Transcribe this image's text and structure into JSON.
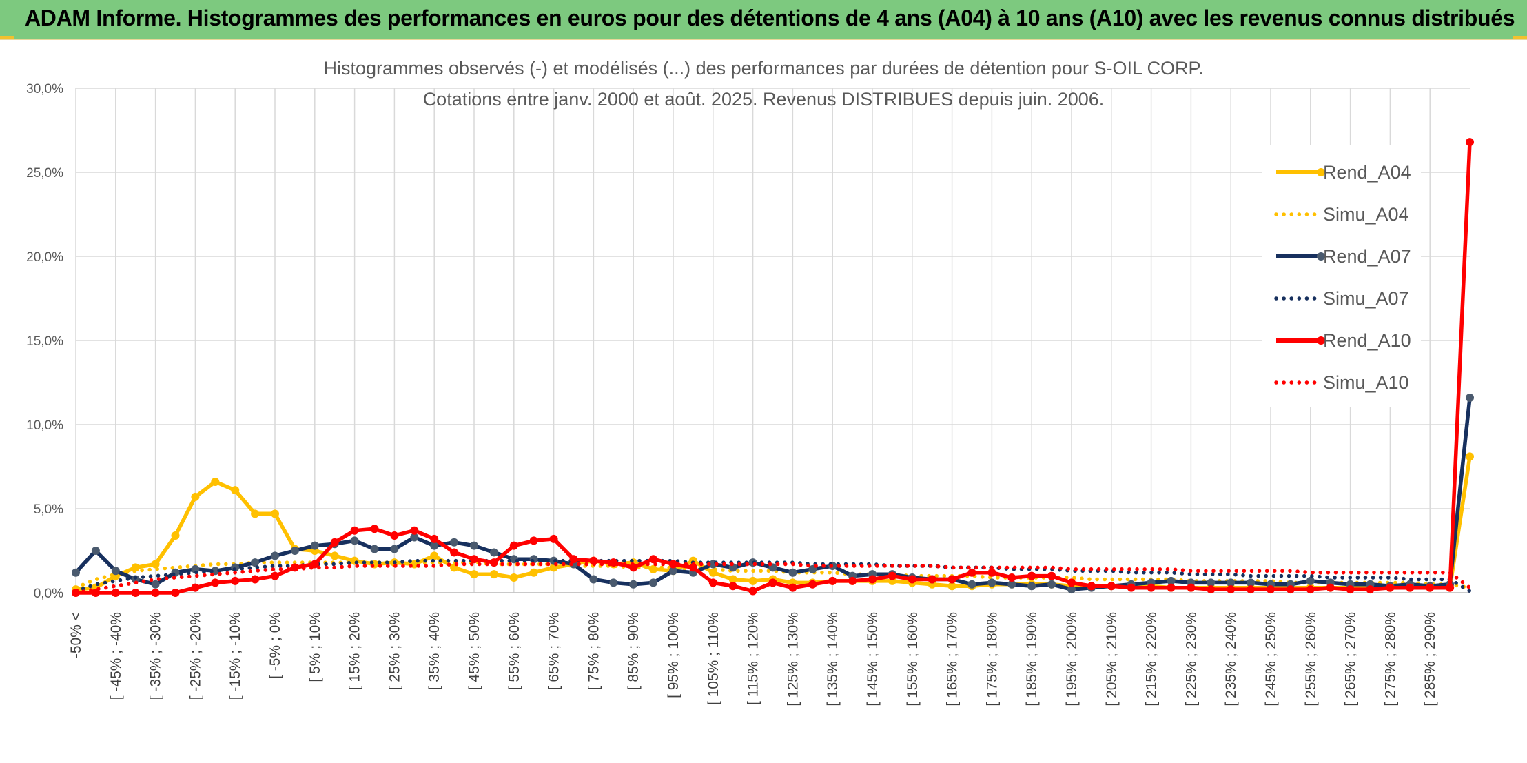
{
  "banner": {
    "title": "ADAM Informe. Histogrammes des performances en euros pour des détentions de 4 ans (A04) à 10 ans (A10) avec les revenus connus distribués"
  },
  "colors": {
    "banner_bg": "#7dc97f",
    "A04": "#ffc000",
    "A07": "#17305e",
    "A07_marker": "#4a5a6e",
    "A10": "#ff0000",
    "grid": "#d9d9d9"
  },
  "chart_data": {
    "type": "line",
    "title": "Histogrammes observés (-) et modélisés (...) des performances par durées de détention pour S-OIL CORP.",
    "subtitle": "Cotations entre janv. 2000 et août. 2025. Revenus DISTRIBUES depuis juin. 2006.",
    "ylim": [
      0,
      30
    ],
    "y_ticks": [
      "0,0%",
      "5,0%",
      "10,0%",
      "15,0%",
      "20,0%",
      "25,0%",
      "30,0%"
    ],
    "grid": true,
    "legend_position": "right",
    "x_tick_labels": [
      "-50% <",
      "[ -45% ; -40%",
      "[ -35% ; -30%",
      "[ -25% ; -20%",
      "[ -15% ; -10%",
      "[ -5% ; 0%",
      "[ 5% ; 10%",
      "[ 15% ; 20%",
      "[ 25% ; 30%",
      "[ 35% ; 40%",
      "[ 45% ; 50%",
      "[ 55% ; 60%",
      "[ 65% ; 70%",
      "[ 75% ; 80%",
      "[ 85% ; 90%",
      "[ 95% ; 100%",
      "[ 105% ; 110%",
      "[ 115% ; 120%",
      "[ 125% ; 130%",
      "[ 135% ; 140%",
      "[ 145% ; 150%",
      "[ 155% ; 160%",
      "[ 165% ; 170%",
      "[ 175% ; 180%",
      "[ 185% ; 190%",
      "[ 195% ; 200%",
      "[ 205% ; 210%",
      "[ 215% ; 220%",
      "[ 225% ; 230%",
      "[ 235% ; 240%",
      "[ 245% ; 250%",
      "[ 255% ; 260%",
      "[ 265% ; 270%",
      "[ 275% ; 280%",
      "[ 285% ; 290%"
    ],
    "x_count": 71,
    "series": [
      {
        "name": "Rend_A04",
        "style": "solid",
        "color": "#ffc000",
        "values": [
          0.2,
          0.3,
          1.0,
          1.5,
          1.7,
          3.4,
          5.7,
          6.6,
          6.1,
          4.7,
          4.7,
          2.6,
          2.5,
          2.2,
          1.9,
          1.7,
          1.8,
          1.7,
          2.2,
          1.5,
          1.1,
          1.1,
          0.9,
          1.2,
          1.5,
          1.7,
          1.9,
          1.7,
          1.8,
          1.4,
          1.3,
          1.9,
          1.2,
          0.8,
          0.7,
          0.8,
          0.6,
          0.6,
          0.7,
          0.7,
          0.7,
          0.7,
          0.6,
          0.5,
          0.4,
          0.4,
          0.5,
          0.5,
          0.5,
          0.5,
          0.4,
          0.4,
          0.4,
          0.4,
          0.4,
          0.3,
          0.3,
          0.3,
          0.3,
          0.3,
          0.3,
          0.3,
          0.3,
          0.3,
          0.3,
          0.3,
          0.3,
          0.3,
          0.3,
          0.3,
          8.1
        ]
      },
      {
        "name": "Simu_A04",
        "style": "dotted",
        "color": "#ffc000",
        "values": [
          0.3,
          0.8,
          1.1,
          1.3,
          1.4,
          1.5,
          1.6,
          1.7,
          1.7,
          1.8,
          1.8,
          1.8,
          1.8,
          1.8,
          1.8,
          1.8,
          1.8,
          1.8,
          1.8,
          1.8,
          1.8,
          1.7,
          1.7,
          1.7,
          1.7,
          1.6,
          1.6,
          1.6,
          1.5,
          1.5,
          1.5,
          1.4,
          1.4,
          1.3,
          1.3,
          1.3,
          1.2,
          1.2,
          1.2,
          1.1,
          1.1,
          1.1,
          1.0,
          1.0,
          1.0,
          1.0,
          0.9,
          0.9,
          0.9,
          0.9,
          0.9,
          0.8,
          0.8,
          0.8,
          0.8,
          0.8,
          0.7,
          0.7,
          0.7,
          0.7,
          0.7,
          0.6,
          0.6,
          0.6,
          0.6,
          0.6,
          0.6,
          0.6,
          0.5,
          0.5,
          0.3
        ]
      },
      {
        "name": "Rend_A07",
        "style": "solid",
        "color": "#17305e",
        "values": [
          1.2,
          2.5,
          1.3,
          0.8,
          0.5,
          1.2,
          1.4,
          1.3,
          1.5,
          1.8,
          2.2,
          2.5,
          2.8,
          2.9,
          3.1,
          2.6,
          2.6,
          3.3,
          2.8,
          3.0,
          2.8,
          2.4,
          2.0,
          2.0,
          1.9,
          1.7,
          0.8,
          0.6,
          0.5,
          0.6,
          1.3,
          1.2,
          1.7,
          1.5,
          1.8,
          1.5,
          1.2,
          1.4,
          1.6,
          1.0,
          1.1,
          1.1,
          0.9,
          0.8,
          0.8,
          0.5,
          0.6,
          0.5,
          0.4,
          0.5,
          0.2,
          0.3,
          0.4,
          0.5,
          0.6,
          0.7,
          0.6,
          0.6,
          0.6,
          0.6,
          0.5,
          0.5,
          0.7,
          0.6,
          0.5,
          0.5,
          0.4,
          0.5,
          0.4,
          0.5,
          11.6
        ]
      },
      {
        "name": "Simu_A07",
        "style": "dotted",
        "color": "#17305e",
        "values": [
          0.1,
          0.5,
          0.7,
          0.9,
          1.0,
          1.1,
          1.2,
          1.3,
          1.4,
          1.5,
          1.6,
          1.6,
          1.7,
          1.7,
          1.8,
          1.8,
          1.8,
          1.9,
          1.9,
          1.9,
          1.9,
          1.9,
          1.9,
          1.9,
          1.9,
          1.9,
          1.9,
          1.9,
          1.9,
          1.9,
          1.9,
          1.8,
          1.8,
          1.8,
          1.8,
          1.8,
          1.8,
          1.7,
          1.7,
          1.7,
          1.7,
          1.6,
          1.6,
          1.6,
          1.5,
          1.5,
          1.5,
          1.4,
          1.4,
          1.4,
          1.3,
          1.3,
          1.3,
          1.2,
          1.2,
          1.2,
          1.1,
          1.1,
          1.1,
          1.0,
          1.0,
          1.0,
          1.0,
          0.9,
          0.9,
          0.9,
          0.9,
          0.8,
          0.8,
          0.8,
          0.1
        ]
      },
      {
        "name": "Rend_A10",
        "style": "solid",
        "color": "#ff0000",
        "values": [
          0.0,
          0.0,
          0.0,
          0.0,
          0.0,
          0.0,
          0.3,
          0.6,
          0.7,
          0.8,
          1.0,
          1.5,
          1.7,
          3.0,
          3.7,
          3.8,
          3.4,
          3.7,
          3.2,
          2.4,
          2.0,
          1.8,
          2.8,
          3.1,
          3.2,
          2.0,
          1.9,
          1.8,
          1.5,
          2.0,
          1.7,
          1.5,
          0.6,
          0.4,
          0.1,
          0.6,
          0.3,
          0.5,
          0.7,
          0.7,
          0.8,
          1.0,
          0.8,
          0.8,
          0.8,
          1.2,
          1.2,
          0.9,
          1.0,
          1.0,
          0.6,
          0.4,
          0.4,
          0.3,
          0.3,
          0.3,
          0.3,
          0.2,
          0.2,
          0.2,
          0.2,
          0.2,
          0.2,
          0.3,
          0.2,
          0.2,
          0.3,
          0.3,
          0.3,
          0.3,
          26.8
        ]
      },
      {
        "name": "Simu_A10",
        "style": "dotted",
        "color": "#ff0000",
        "values": [
          0.0,
          0.2,
          0.4,
          0.6,
          0.8,
          0.9,
          1.0,
          1.1,
          1.2,
          1.3,
          1.4,
          1.4,
          1.5,
          1.5,
          1.6,
          1.6,
          1.6,
          1.6,
          1.6,
          1.7,
          1.7,
          1.7,
          1.7,
          1.7,
          1.7,
          1.7,
          1.7,
          1.7,
          1.7,
          1.7,
          1.7,
          1.7,
          1.7,
          1.7,
          1.7,
          1.7,
          1.7,
          1.6,
          1.6,
          1.6,
          1.6,
          1.6,
          1.6,
          1.6,
          1.5,
          1.5,
          1.5,
          1.5,
          1.5,
          1.5,
          1.4,
          1.4,
          1.4,
          1.4,
          1.4,
          1.4,
          1.3,
          1.3,
          1.3,
          1.3,
          1.3,
          1.3,
          1.2,
          1.2,
          1.2,
          1.2,
          1.2,
          1.2,
          1.2,
          1.2,
          0.3
        ]
      }
    ]
  }
}
